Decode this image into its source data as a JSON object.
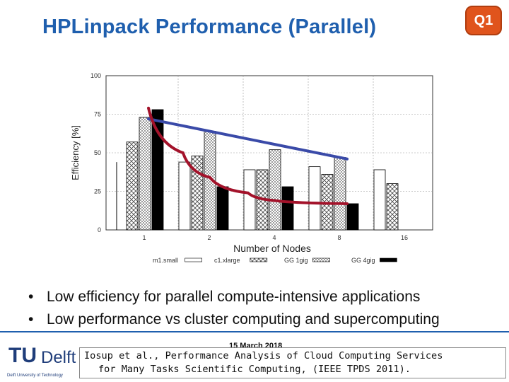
{
  "slide": {
    "title": "HPLinpack Performance (Parallel)",
    "badge": "Q1",
    "bullets": [
      "Low efficiency for parallel compute-intensive applications",
      "Low performance vs cluster computing and supercomputing"
    ],
    "date": "15 March 2018",
    "logo": {
      "mark": "TU",
      "name": "Delft",
      "sub": "Delft University of Technology"
    },
    "citation": [
      "Iosup et al., Performance Analysis of Cloud Computing Services",
      "for Many Tasks Scientific Computing, (IEEE TPDS 2011)."
    ]
  },
  "colors": {
    "title": "#1f5fae",
    "badge": "#e0541c",
    "trend_blue": "#3a4aa8",
    "trend_red": "#a3122a"
  },
  "chart_data": {
    "type": "bar",
    "xlabel": "Number of Nodes",
    "ylabel": "Efficiency [%]",
    "ylim": [
      0,
      100
    ],
    "yticks": [
      "0",
      "25",
      "50",
      "75",
      "100"
    ],
    "categories": [
      "1",
      "2",
      "4",
      "8",
      "16"
    ],
    "series": [
      {
        "name": "m1.small",
        "pattern": "white",
        "values": [
          null,
          44,
          39,
          41,
          39
        ]
      },
      {
        "name": "c1.xlarge",
        "pattern": "cross",
        "values": [
          57,
          48,
          39,
          36,
          30
        ]
      },
      {
        "name": "GG 1gig",
        "pattern": "dotted",
        "values": [
          73,
          64,
          52,
          47,
          null
        ]
      },
      {
        "name": "GG 4gig",
        "pattern": "black",
        "values": [
          78,
          28,
          28,
          17,
          null
        ]
      }
    ],
    "extra_bar_left": 44,
    "trend_lines": [
      {
        "color": "blue",
        "points": [
          [
            1,
            72
          ],
          [
            8,
            46
          ]
        ]
      },
      {
        "color": "red",
        "points": [
          [
            1,
            79
          ],
          [
            1.5,
            50
          ],
          [
            2,
            34
          ],
          [
            3,
            24
          ],
          [
            4,
            19
          ],
          [
            8,
            17
          ]
        ]
      }
    ],
    "legend_placement": "bottom"
  }
}
